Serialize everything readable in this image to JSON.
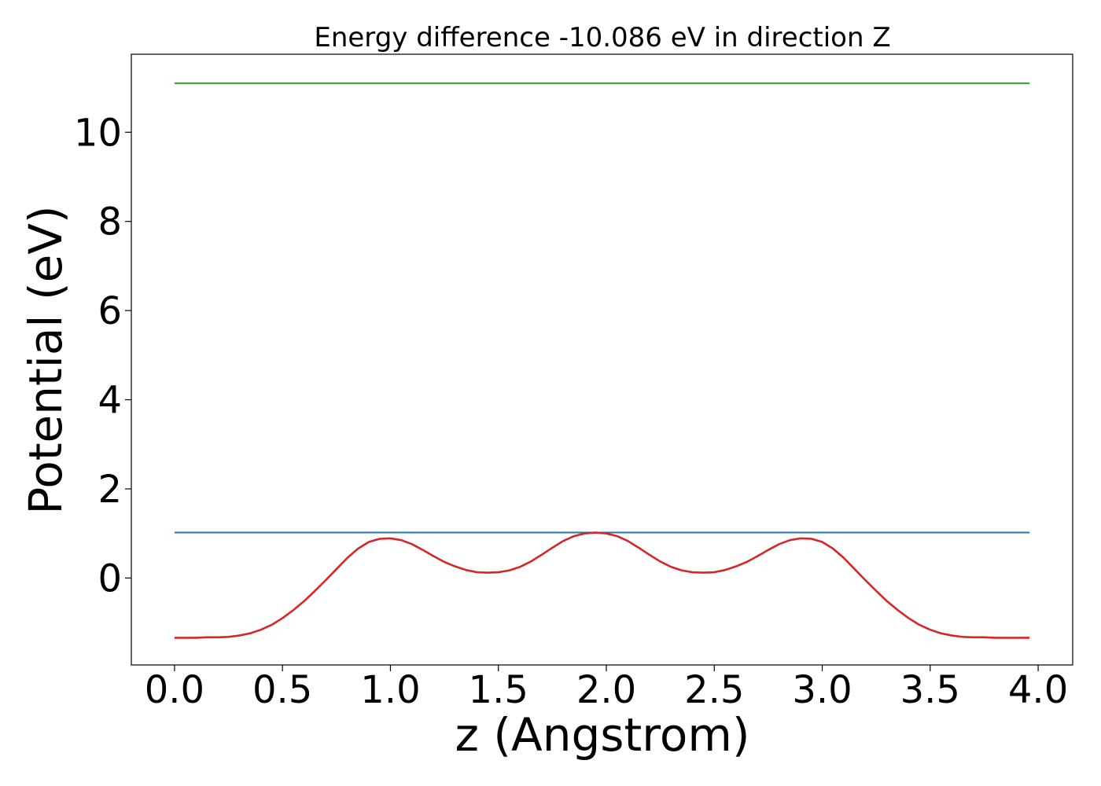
{
  "chart_data": {
    "type": "line",
    "title": "Energy difference -10.086 eV in direction Z",
    "xlabel": "z (Angstrom)",
    "ylabel": "Potential (eV)",
    "xlim": [
      -0.2,
      4.16
    ],
    "ylim": [
      -1.95,
      11.75
    ],
    "xticks": [
      "0.0",
      "0.5",
      "1.0",
      "1.5",
      "2.0",
      "2.5",
      "3.0",
      "3.5",
      "4.0"
    ],
    "yticks": [
      "0",
      "2",
      "4",
      "6",
      "8",
      "10"
    ],
    "grid": false,
    "series": [
      {
        "color": "#2ca02c",
        "x": [
          0.0,
          3.96
        ],
        "y": [
          11.1,
          11.1
        ]
      },
      {
        "color": "#1f77b4",
        "x": [
          0.0,
          3.96
        ],
        "y": [
          1.02,
          1.02
        ]
      },
      {
        "color": "#d62728",
        "x": [
          0.0,
          0.05,
          0.1,
          0.15,
          0.2,
          0.25,
          0.3,
          0.35,
          0.4,
          0.45,
          0.5,
          0.55,
          0.6,
          0.65,
          0.7,
          0.75,
          0.8,
          0.85,
          0.9,
          0.95,
          1.0,
          1.05,
          1.1,
          1.15,
          1.2,
          1.25,
          1.3,
          1.35,
          1.4,
          1.45,
          1.5,
          1.55,
          1.6,
          1.65,
          1.7,
          1.75,
          1.8,
          1.85,
          1.9,
          1.95,
          2.0,
          2.05,
          2.1,
          2.15,
          2.2,
          2.25,
          2.3,
          2.35,
          2.4,
          2.45,
          2.5,
          2.55,
          2.6,
          2.65,
          2.7,
          2.75,
          2.8,
          2.85,
          2.9,
          2.95,
          3.0,
          3.05,
          3.1,
          3.15,
          3.2,
          3.25,
          3.3,
          3.35,
          3.4,
          3.45,
          3.5,
          3.55,
          3.6,
          3.65,
          3.7,
          3.75,
          3.8,
          3.85,
          3.9,
          3.96
        ],
        "y": [
          -1.34,
          -1.34,
          -1.34,
          -1.33,
          -1.33,
          -1.32,
          -1.29,
          -1.24,
          -1.16,
          -1.05,
          -0.9,
          -0.72,
          -0.52,
          -0.29,
          -0.05,
          0.2,
          0.45,
          0.66,
          0.81,
          0.88,
          0.89,
          0.85,
          0.76,
          0.63,
          0.49,
          0.36,
          0.26,
          0.18,
          0.13,
          0.12,
          0.13,
          0.17,
          0.25,
          0.37,
          0.52,
          0.68,
          0.83,
          0.94,
          1.0,
          1.02,
          1.0,
          0.94,
          0.83,
          0.68,
          0.52,
          0.37,
          0.25,
          0.17,
          0.13,
          0.12,
          0.13,
          0.18,
          0.26,
          0.36,
          0.49,
          0.63,
          0.76,
          0.85,
          0.89,
          0.88,
          0.81,
          0.66,
          0.45,
          0.2,
          -0.05,
          -0.29,
          -0.52,
          -0.72,
          -0.9,
          -1.05,
          -1.16,
          -1.24,
          -1.29,
          -1.32,
          -1.33,
          -1.33,
          -1.34,
          -1.34,
          -1.34,
          -1.34
        ]
      }
    ]
  }
}
